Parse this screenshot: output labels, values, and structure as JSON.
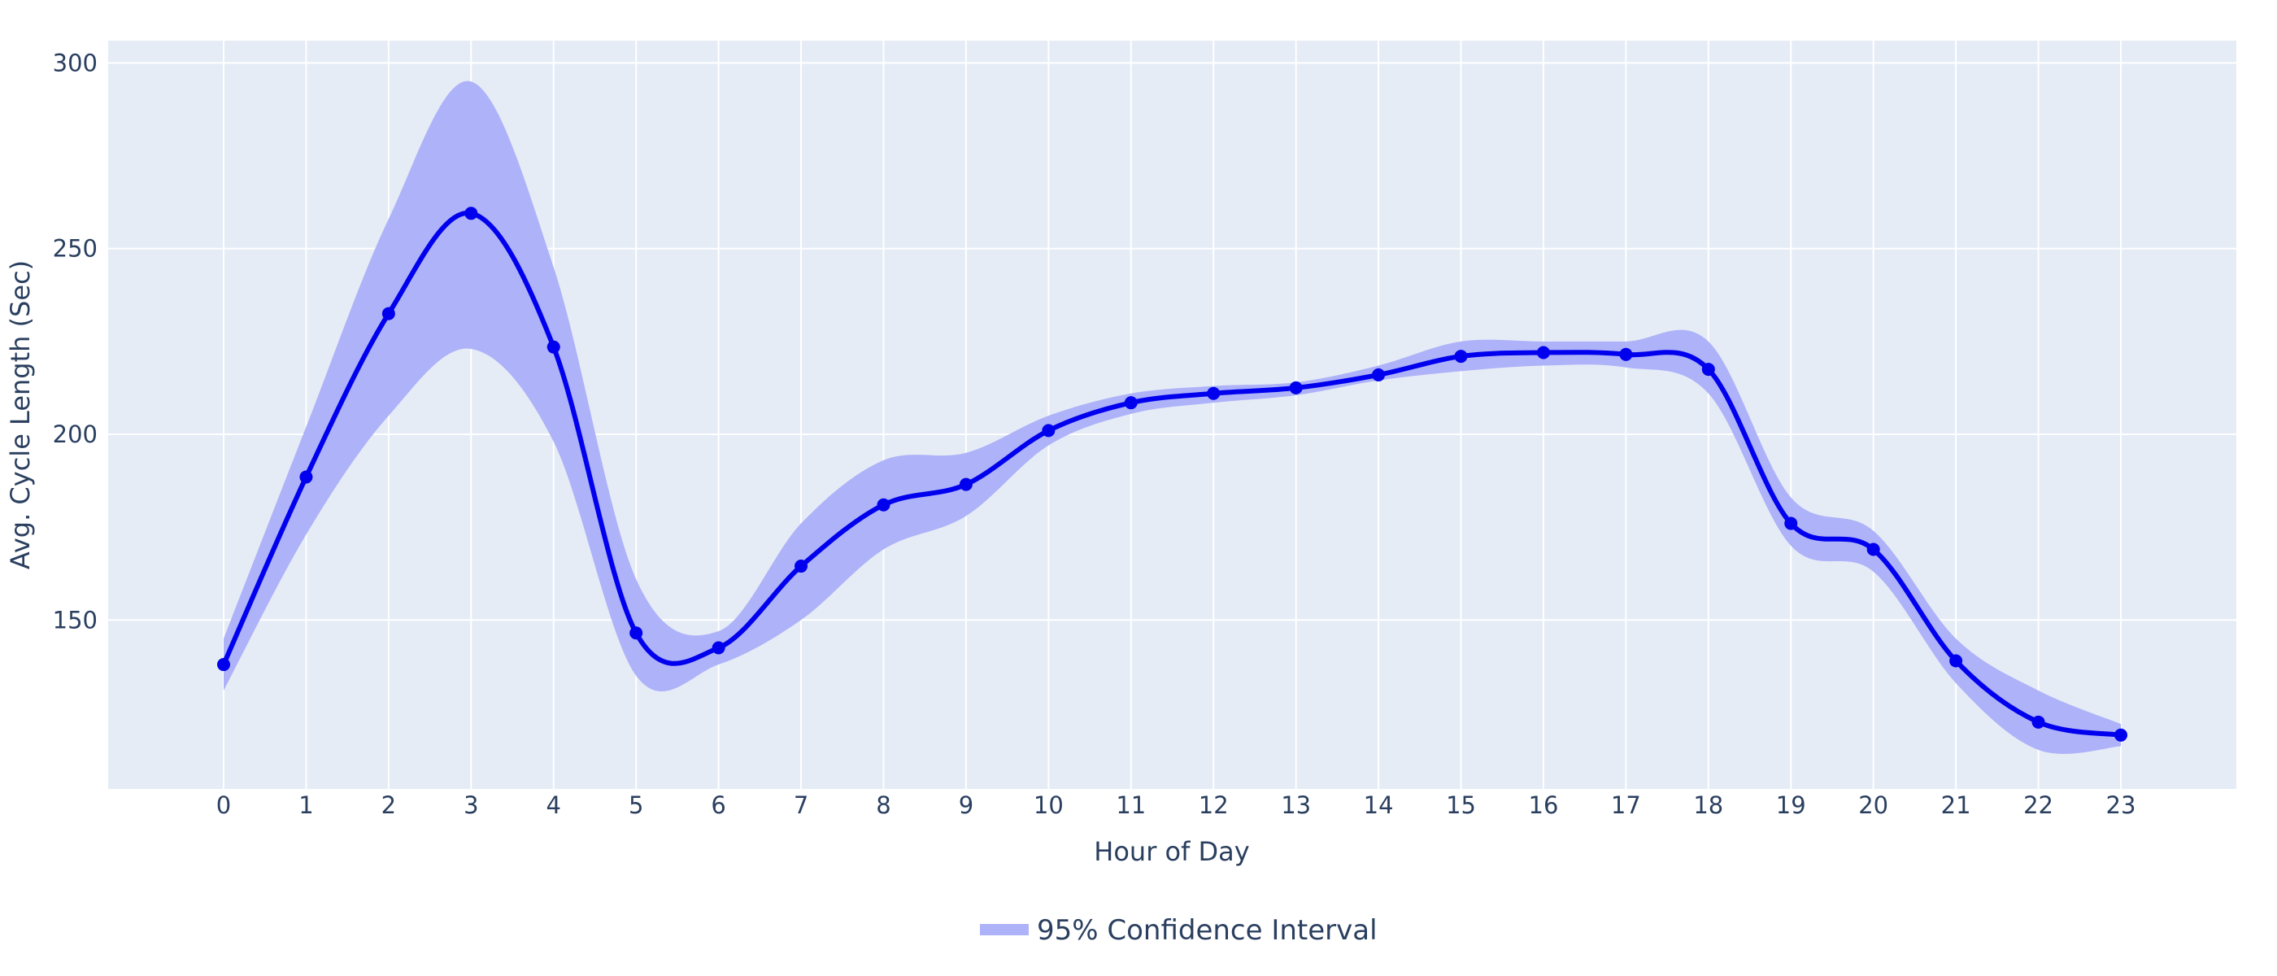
{
  "chart_data": {
    "type": "line",
    "xlabel": "Hour of Day",
    "ylabel": "Avg. Cycle Length (Sec)",
    "x": [
      0,
      1,
      2,
      3,
      4,
      5,
      6,
      7,
      8,
      9,
      10,
      11,
      12,
      13,
      14,
      15,
      16,
      17,
      18,
      19,
      20,
      21,
      22,
      23
    ],
    "xlim": [
      -1.4,
      24.4
    ],
    "ylim": [
      104.5,
      306
    ],
    "y_ticks": [
      150,
      200,
      250,
      300
    ],
    "grid": true,
    "series": [
      {
        "values": [
          138,
          188.5,
          232.5,
          259.5,
          223.5,
          146.5,
          142.5,
          164.5,
          181,
          186.5,
          201,
          208.5,
          211,
          212.5,
          216,
          221,
          222,
          221.5,
          217.5,
          176,
          169,
          139,
          122.5,
          119
        ]
      }
    ],
    "confidence_band": {
      "name": "95% Confidence Interval",
      "upper": [
        145,
        202,
        258,
        295,
        245,
        161,
        147,
        176,
        193,
        195,
        205,
        211,
        213,
        214,
        218.5,
        225,
        225,
        225,
        225,
        183,
        174,
        145,
        131,
        122
      ],
      "lower": [
        131,
        173,
        205,
        223,
        198,
        135,
        138,
        150,
        169,
        178,
        197,
        205.5,
        208.5,
        210.5,
        214.5,
        217,
        218.5,
        218,
        211,
        170,
        163,
        133,
        115,
        116
      ]
    },
    "legend": {
      "position": "bottom-center",
      "entries": [
        "95% Confidence Interval"
      ]
    },
    "colors": {
      "line": "#0000ee",
      "band": "#aeb2f8",
      "plot_bg": "#e5ecf6",
      "grid": "#ffffff",
      "text": "#2a3f5f"
    }
  }
}
